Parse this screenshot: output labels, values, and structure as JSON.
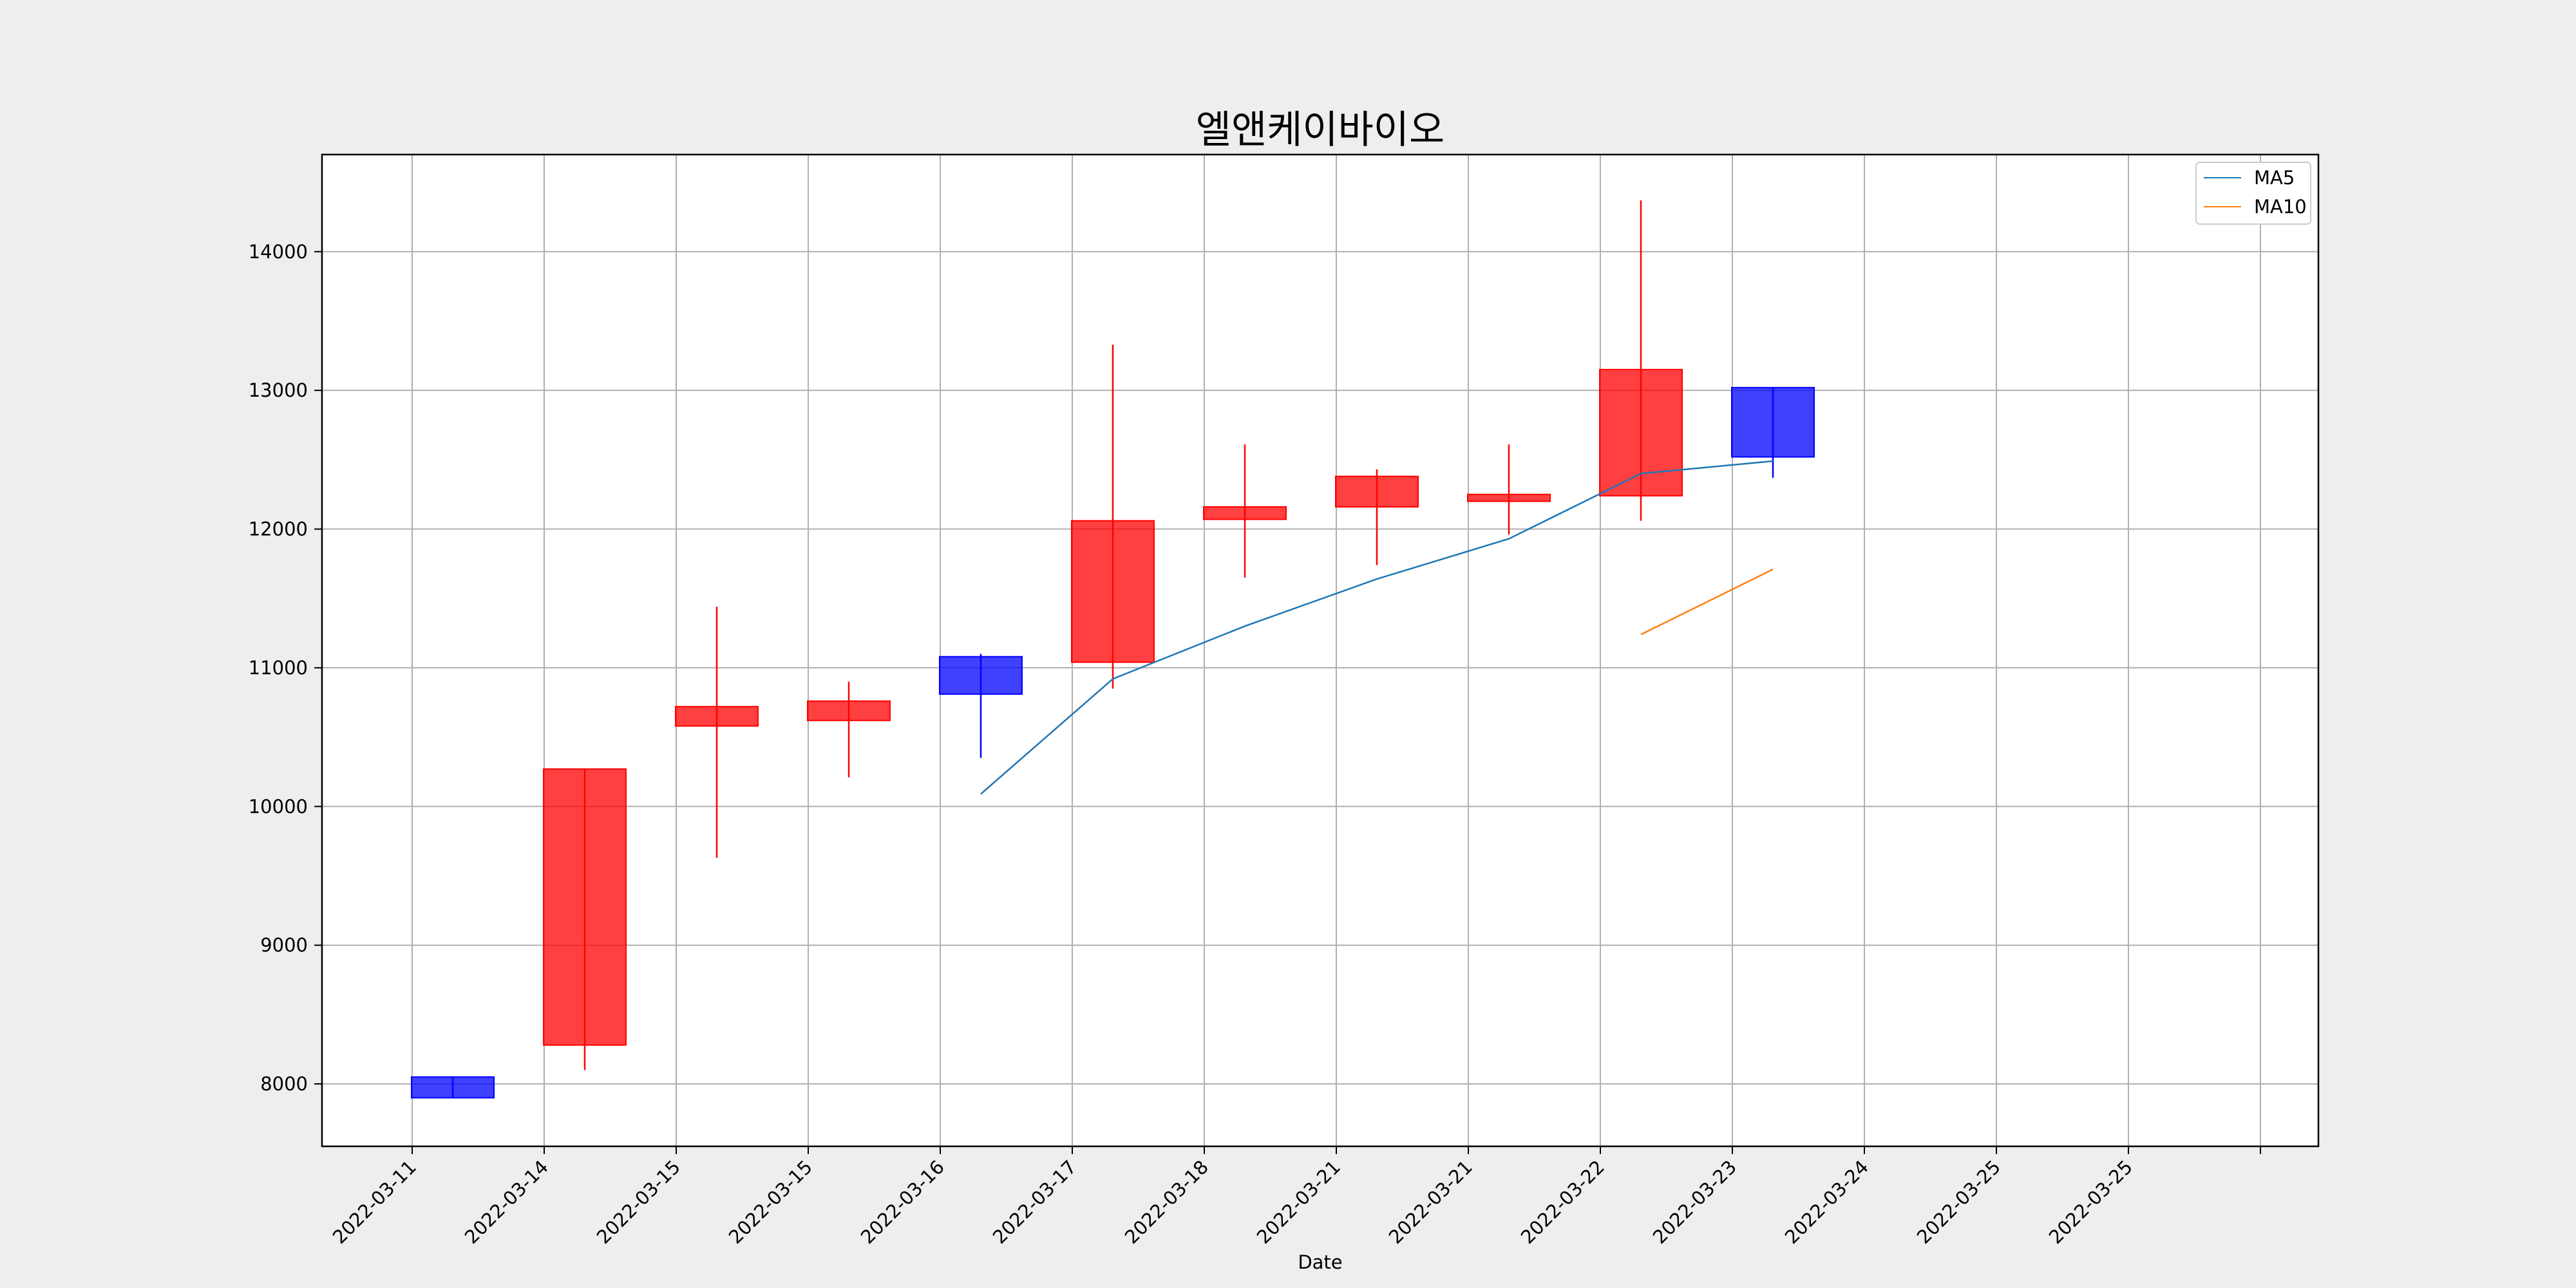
{
  "chart_data": {
    "type": "candlestick",
    "title": "엘앤케이바이오",
    "xlabel": "Date",
    "ylabel": "",
    "grid": true,
    "legend_position": "top-right",
    "ylim": [
      7550,
      14700
    ],
    "yticks": [
      8000,
      9000,
      10000,
      11000,
      12000,
      13000,
      14000
    ],
    "xtick_labels": [
      "2022-03-11",
      "2022-03-14",
      "2022-03-15",
      "2022-03-15",
      "2022-03-16",
      "2022-03-17",
      "2022-03-18",
      "2022-03-21",
      "2022-03-21",
      "2022-03-22",
      "2022-03-23",
      "2022-03-24",
      "2022-03-25",
      "2022-03-25",
      ""
    ],
    "colors": {
      "up": "#ff0000",
      "down": "#0000ff",
      "ma5": "#1f77b4",
      "ma10": "#ff7f0e"
    },
    "candles": [
      {
        "open": 8050,
        "high": 8050,
        "low": 7900,
        "close": 7900
      },
      {
        "open": 8280,
        "high": 10270,
        "low": 8100,
        "close": 10270
      },
      {
        "open": 10580,
        "high": 11440,
        "low": 9630,
        "close": 10720
      },
      {
        "open": 10620,
        "high": 10900,
        "low": 10210,
        "close": 10760
      },
      {
        "open": 11080,
        "high": 11100,
        "low": 10350,
        "close": 10810
      },
      {
        "open": 11040,
        "high": 13330,
        "low": 10850,
        "close": 12060
      },
      {
        "open": 12070,
        "high": 12610,
        "low": 11650,
        "close": 12160
      },
      {
        "open": 12160,
        "high": 12430,
        "low": 11740,
        "close": 12380
      },
      {
        "open": 12200,
        "high": 12610,
        "low": 11960,
        "close": 12250
      },
      {
        "open": 12240,
        "high": 14370,
        "low": 12060,
        "close": 13150
      },
      {
        "open": 13020,
        "high": 13020,
        "low": 12370,
        "close": 12520
      }
    ],
    "series": [
      {
        "name": "MA5",
        "values": [
          null,
          null,
          null,
          null,
          10090,
          10920,
          11300,
          11640,
          11930,
          12400,
          12490
        ]
      },
      {
        "name": "MA10",
        "values": [
          null,
          null,
          null,
          null,
          null,
          null,
          null,
          null,
          null,
          11240,
          11710
        ]
      }
    ]
  }
}
